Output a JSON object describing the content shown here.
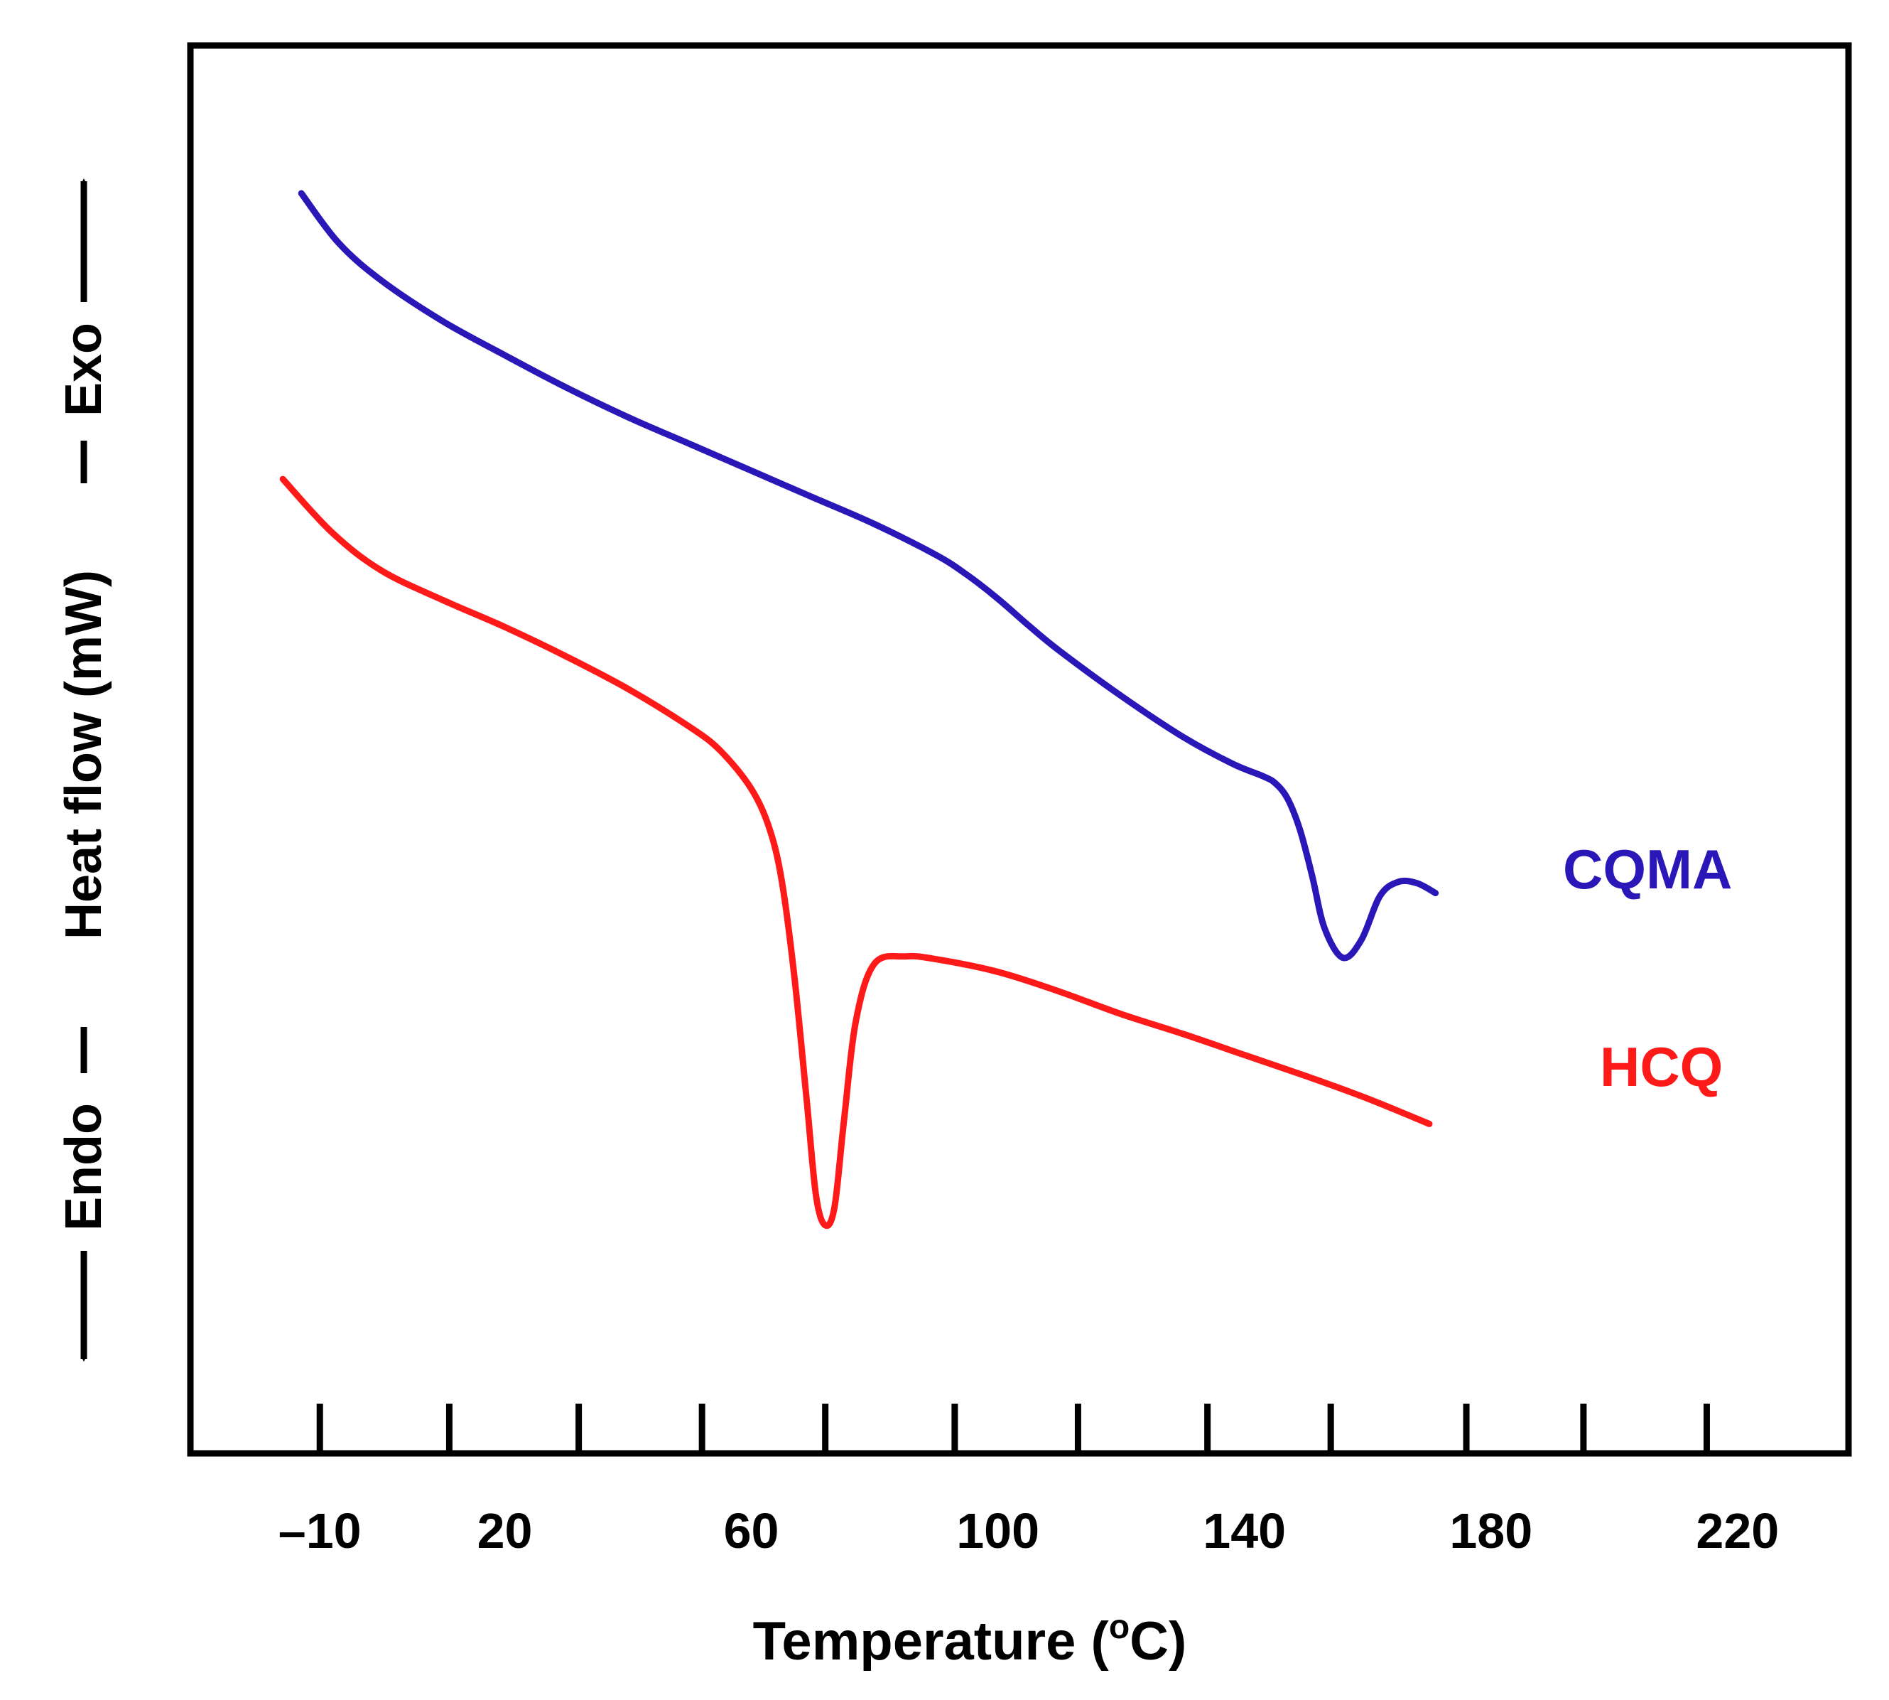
{
  "chart_data": {
    "type": "line",
    "title": "",
    "xlabel": "Temperature (°C)",
    "xlabel_parts": {
      "before": "Temperature (",
      "superscript": "o",
      "after": "C)"
    },
    "ylabel": {
      "endo": "Endo",
      "middle": "Heat flow (mW)",
      "exo": "Exo"
    },
    "x_tick_labels": [
      "–10",
      "20",
      "60",
      "100",
      "140",
      "180",
      "220"
    ],
    "x_tick_values": [
      -10,
      20,
      60,
      100,
      140,
      180,
      220
    ],
    "minor_tick_values": [
      -10,
      11,
      32,
      52,
      72,
      93,
      113,
      134,
      154,
      176,
      195,
      215
    ],
    "xlim": [
      -31,
      238
    ],
    "ylim": [
      0,
      100
    ],
    "grid": false,
    "series": [
      {
        "name": "CQMA",
        "color": "#2A17B8",
        "points": [
          [
            -13,
            89.5
          ],
          [
            -7,
            86
          ],
          [
            0,
            83.3
          ],
          [
            10,
            80.4
          ],
          [
            20,
            78
          ],
          [
            30,
            75.7
          ],
          [
            40,
            73.6
          ],
          [
            50,
            71.7
          ],
          [
            60,
            69.8
          ],
          [
            70,
            67.9
          ],
          [
            80,
            66
          ],
          [
            90,
            63.8
          ],
          [
            95,
            62.4
          ],
          [
            100,
            60.7
          ],
          [
            105,
            58.8
          ],
          [
            110,
            57
          ],
          [
            120,
            53.8
          ],
          [
            130,
            50.9
          ],
          [
            138,
            49
          ],
          [
            143,
            48.1
          ],
          [
            145,
            47.6
          ],
          [
            147,
            46.5
          ],
          [
            149,
            44.3
          ],
          [
            151,
            41
          ],
          [
            153,
            37.3
          ],
          [
            156,
            35.2
          ],
          [
            159,
            36.5
          ],
          [
            162,
            39.6
          ],
          [
            165,
            40.6
          ],
          [
            168,
            40.5
          ],
          [
            171,
            39.8
          ]
        ]
      },
      {
        "name": "HCQ",
        "color": "#FF1A1A",
        "points": [
          [
            -16,
            69.2
          ],
          [
            -8,
            65.4
          ],
          [
            0,
            62.7
          ],
          [
            10,
            60.6
          ],
          [
            20,
            58.7
          ],
          [
            30,
            56.6
          ],
          [
            40,
            54.3
          ],
          [
            50,
            51.6
          ],
          [
            55,
            49.9
          ],
          [
            60,
            47.2
          ],
          [
            63,
            44.3
          ],
          [
            65,
            40.5
          ],
          [
            67,
            33.8
          ],
          [
            69,
            25
          ],
          [
            70.5,
            18.3
          ],
          [
            72,
            16.2
          ],
          [
            73.5,
            17.5
          ],
          [
            75,
            23.5
          ],
          [
            77,
            30.8
          ],
          [
            80,
            34.8
          ],
          [
            85,
            35.3
          ],
          [
            90,
            35.1
          ],
          [
            100,
            34.2
          ],
          [
            110,
            32.8
          ],
          [
            120,
            31.2
          ],
          [
            130,
            29.8
          ],
          [
            140,
            28.3
          ],
          [
            150,
            26.8
          ],
          [
            160,
            25.2
          ],
          [
            170,
            23.4
          ]
        ]
      }
    ]
  }
}
